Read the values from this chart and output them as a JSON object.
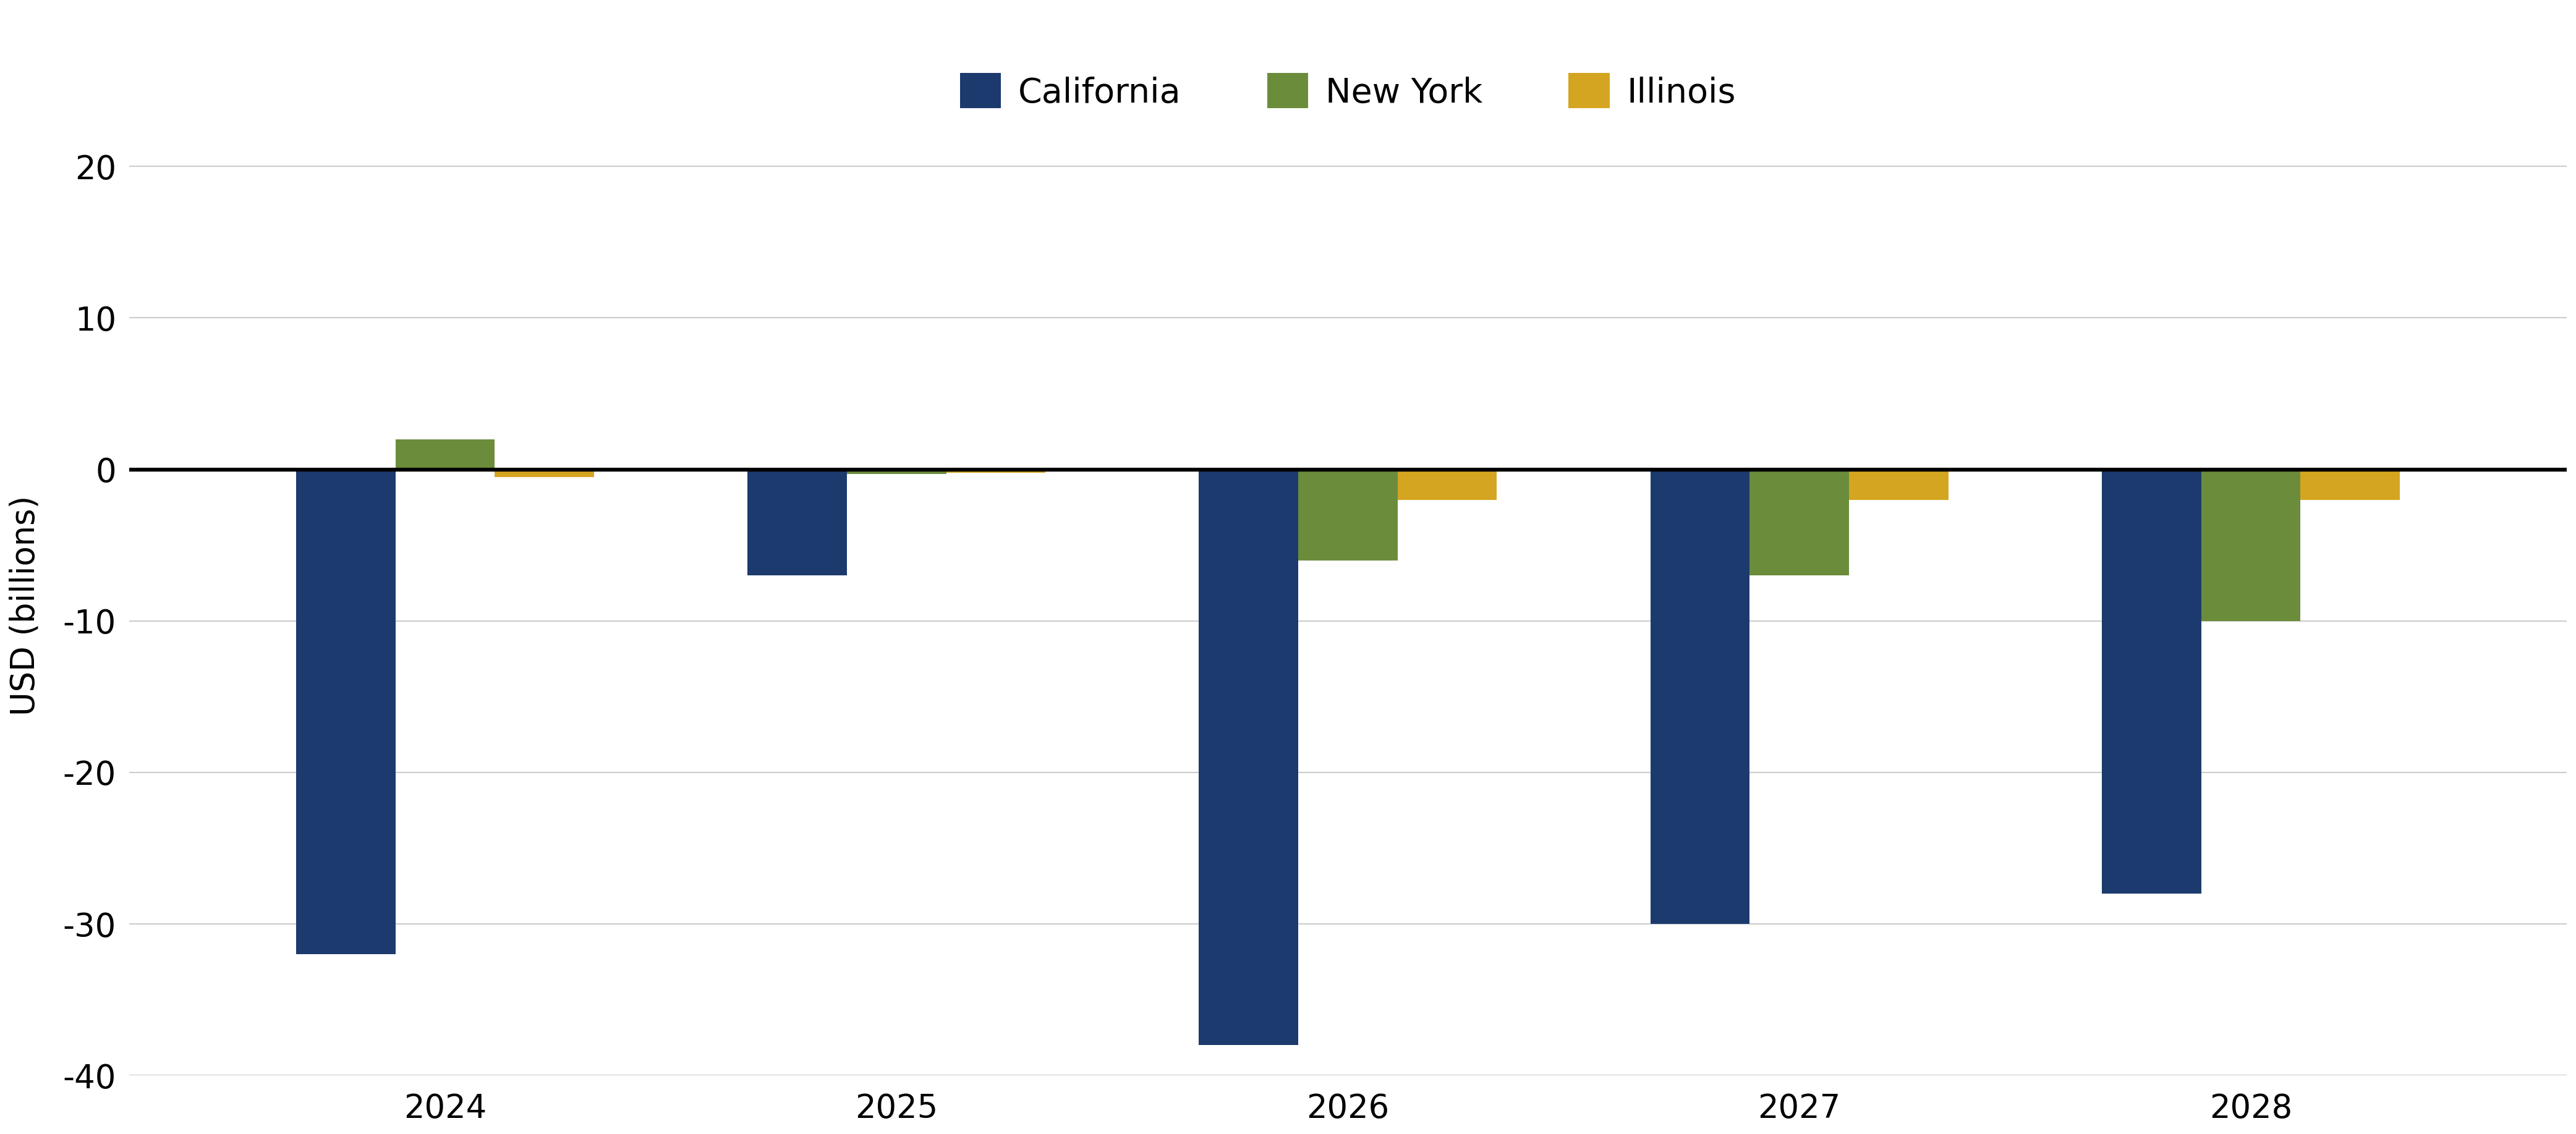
{
  "years": [
    2024,
    2025,
    2026,
    2027,
    2028
  ],
  "california": [
    -32,
    -7,
    -38,
    -30,
    -28
  ],
  "new_york": [
    2,
    -0.3,
    -6,
    -7,
    -10
  ],
  "illinois": [
    -0.5,
    -0.2,
    -2,
    -2,
    -2
  ],
  "california_color": "#1C3A6E",
  "new_york_color": "#6B8C3A",
  "illinois_color": "#D4A520",
  "ylim": [
    -40,
    22
  ],
  "yticks": [
    -40,
    -30,
    -20,
    -10,
    0,
    10,
    20
  ],
  "ylabel": "USD (billions)",
  "bar_width": 0.22,
  "bar_gap": 0.0,
  "background_color": "#ffffff",
  "grid_color": "#cccccc",
  "legend_labels": [
    "California",
    "New York",
    "Illinois"
  ]
}
